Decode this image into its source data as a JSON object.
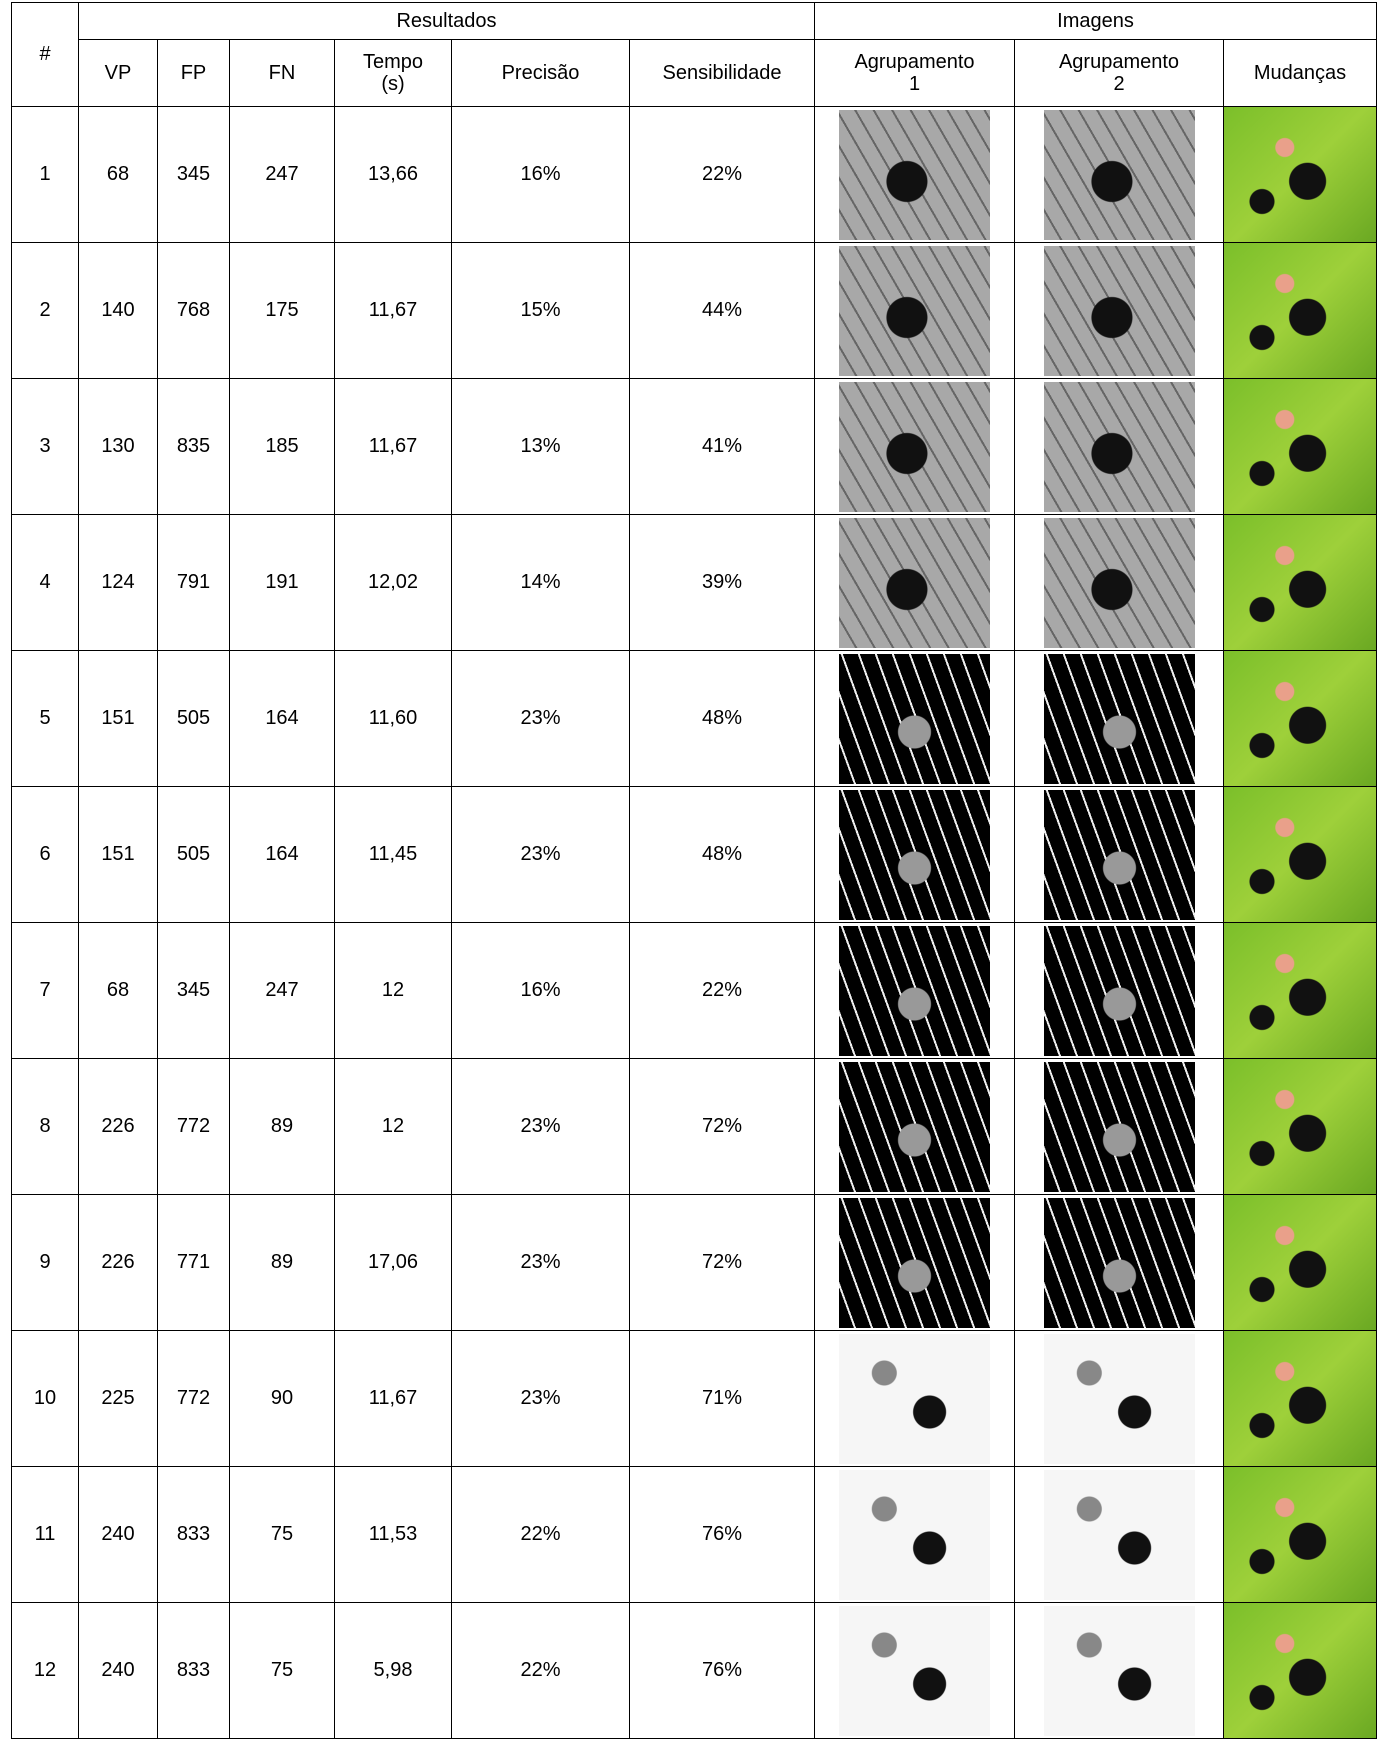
{
  "table": {
    "groups": [
      "Resultados",
      "Imagens"
    ],
    "corner": "#",
    "columns": [
      "VP",
      "FP",
      "FN",
      "Tempo (s)",
      "Precisão",
      "Sensibilidade",
      "Agrupamento 1",
      "Agrupamento 2",
      "Mudanças"
    ],
    "rows": [
      [
        "1",
        "68",
        "345",
        "247",
        "13,66",
        "16%",
        "22%"
      ],
      [
        "2",
        "140",
        "768",
        "175",
        "11,67",
        "15%",
        "44%"
      ],
      [
        "3",
        "130",
        "835",
        "185",
        "11,67",
        "13%",
        "41%"
      ],
      [
        "4",
        "124",
        "791",
        "191",
        "12,02",
        "14%",
        "39%"
      ],
      [
        "5",
        "151",
        "505",
        "164",
        "11,60",
        "23%",
        "48%"
      ],
      [
        "6",
        "151",
        "505",
        "164",
        "11,45",
        "23%",
        "48%"
      ],
      [
        "7",
        "68",
        "345",
        "247",
        "12",
        "16%",
        "22%"
      ],
      [
        "8",
        "226",
        "772",
        "89",
        "12",
        "23%",
        "72%"
      ],
      [
        "9",
        "226",
        "771",
        "89",
        "17,06",
        "23%",
        "72%"
      ],
      [
        "10",
        "225",
        "772",
        "90",
        "11,67",
        "23%",
        "71%"
      ],
      [
        "11",
        "240",
        "833",
        "75",
        "11,53",
        "22%",
        "76%"
      ],
      [
        "12",
        "240",
        "833",
        "75",
        "5,98",
        "22%",
        "76%"
      ]
    ]
  }
}
